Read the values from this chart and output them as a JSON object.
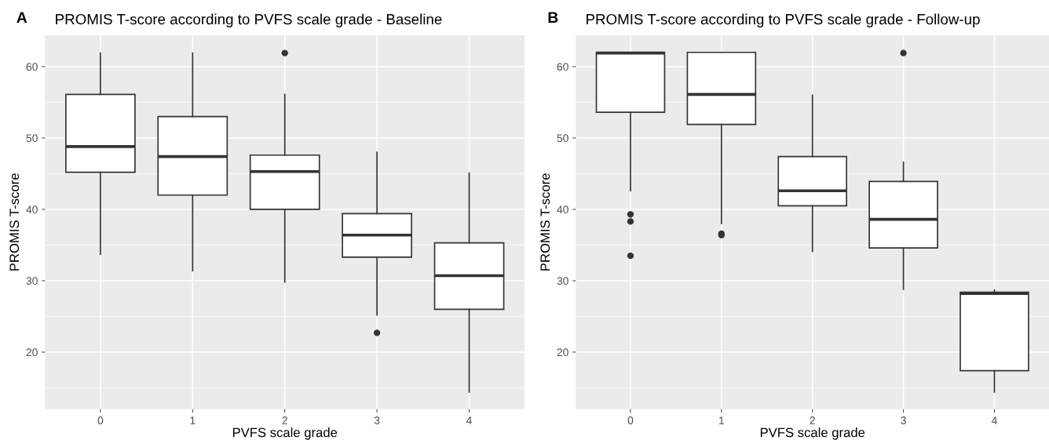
{
  "chart_data": [
    {
      "type": "box",
      "title": "PROMIS T-score according to PVFS scale grade - Baseline",
      "annotations": [
        "A"
      ],
      "xlabel": "PVFS scale grade",
      "ylabel": "PROMIS T-score",
      "categories": [
        "0",
        "1",
        "2",
        "3",
        "4"
      ],
      "ylim": [
        12,
        64.4
      ],
      "yticks": [
        20,
        30,
        40,
        50,
        60
      ],
      "grid": true,
      "boxes": [
        {
          "low": 33.7,
          "q1": 45.2,
          "median": 48.8,
          "q3": 56.1,
          "high": 61.9
        },
        {
          "low": 31.4,
          "q1": 42.0,
          "median": 47.4,
          "q3": 53.0,
          "high": 61.9
        },
        {
          "low": 29.8,
          "q1": 40.0,
          "median": 45.3,
          "q3": 47.6,
          "high": 56.1,
          "outliers": [
            61.9
          ]
        },
        {
          "low": 25.2,
          "q1": 33.3,
          "median": 36.4,
          "q3": 39.4,
          "high": 48.0,
          "outliers": [
            22.7
          ]
        },
        {
          "low": 14.4,
          "q1": 26.0,
          "median": 30.7,
          "q3": 35.3,
          "high": 45.1
        }
      ]
    },
    {
      "type": "box",
      "title": "PROMIS T-score according to PVFS scale grade - Follow-up",
      "annotations": [
        "B"
      ],
      "xlabel": "PVFS scale grade",
      "ylabel": "PROMIS T-score",
      "categories": [
        "0",
        "1",
        "2",
        "3",
        "4"
      ],
      "ylim": [
        12,
        64.4
      ],
      "yticks": [
        20,
        30,
        40,
        50,
        60
      ],
      "grid": true,
      "boxes": [
        {
          "low": 42.6,
          "q1": 53.6,
          "median": 61.9,
          "q3": 62.0,
          "high": 62.0,
          "outliers": [
            39.3,
            38.3,
            33.5
          ]
        },
        {
          "low": 38.0,
          "q1": 51.9,
          "median": 56.1,
          "q3": 62.0,
          "high": 62.0,
          "outliers": [
            36.6,
            36.4
          ]
        },
        {
          "low": 34.1,
          "q1": 40.5,
          "median": 42.6,
          "q3": 47.4,
          "high": 56.0
        },
        {
          "low": 28.8,
          "q1": 34.6,
          "median": 38.6,
          "q3": 43.9,
          "high": 46.6,
          "outliers": [
            61.9
          ]
        },
        {
          "low": 14.4,
          "q1": 17.4,
          "median": 28.2,
          "q3": 28.4,
          "high": 28.7
        }
      ]
    }
  ]
}
